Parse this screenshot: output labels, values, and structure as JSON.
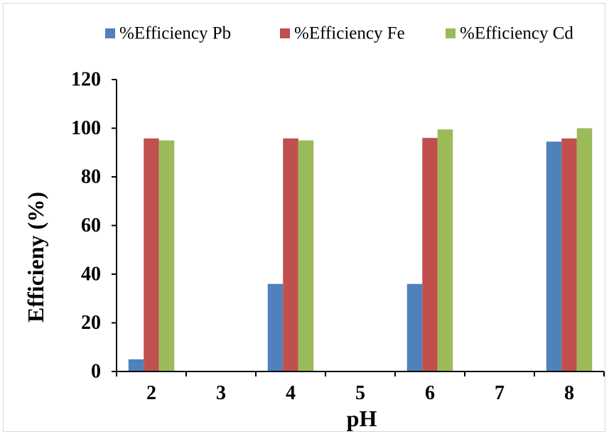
{
  "chart_data": {
    "type": "bar",
    "categories": [
      "2",
      "3",
      "4",
      "5",
      "6",
      "7",
      "8"
    ],
    "series": [
      {
        "name": "%Efficiency Pb",
        "color": "#4f81bd",
        "values": [
          5,
          0,
          36,
          0,
          36,
          0,
          94.5
        ]
      },
      {
        "name": "%Efficiency Fe",
        "color": "#c0504d",
        "values": [
          95.8,
          0,
          95.8,
          0,
          96,
          0,
          95.8
        ]
      },
      {
        "name": "%Efficiency Cd",
        "color": "#9bbb59",
        "values": [
          95,
          0,
          95,
          0,
          99.5,
          0,
          100
        ]
      }
    ],
    "title": "",
    "xlabel": "pH",
    "ylabel": "Efficieny (%)",
    "ylim": [
      0,
      120
    ],
    "yticks": [
      0,
      20,
      40,
      60,
      80,
      100,
      120
    ],
    "grid": false,
    "legend_position": "top"
  }
}
